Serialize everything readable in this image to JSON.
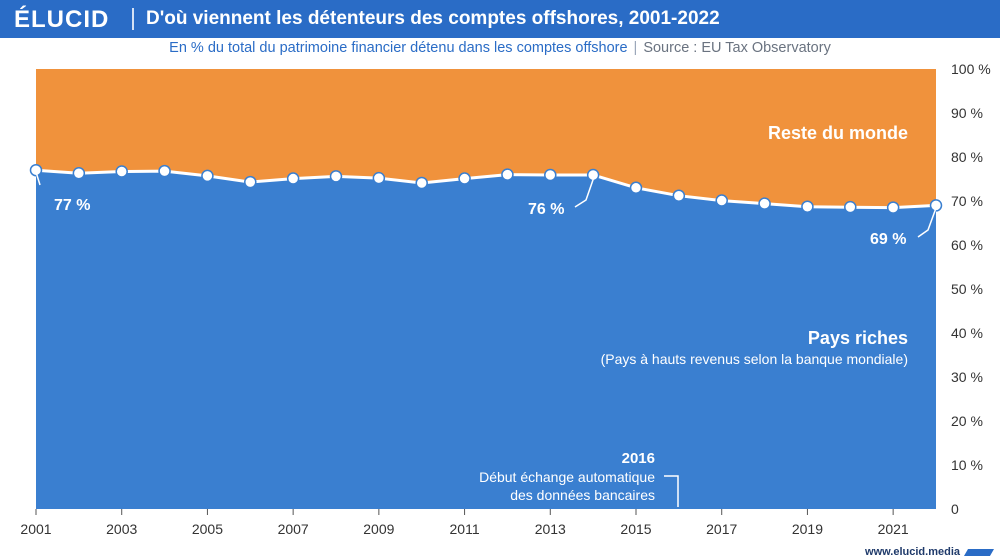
{
  "header": {
    "logo": "ÉLUCID",
    "title": "D'où viennent les détenteurs des comptes offshores, 2001-2022"
  },
  "subtitle": {
    "text": "En % du total du patrimoine financier détenu dans les comptes offshore",
    "separator": "|",
    "source": "Source : EU Tax Observatory"
  },
  "footer": {
    "site": "www.elucid.media"
  },
  "colors": {
    "header": "#2a6cc6",
    "blue_area": "#3a7fd0",
    "orange_area": "#f0923c",
    "line": "#ffffff"
  },
  "chart_data": {
    "type": "area",
    "x": [
      2001,
      2002,
      2003,
      2004,
      2005,
      2006,
      2007,
      2008,
      2009,
      2010,
      2011,
      2012,
      2013,
      2014,
      2015,
      2016,
      2017,
      2018,
      2019,
      2020,
      2021,
      2022
    ],
    "series": [
      {
        "name": "Pays riches",
        "values": [
          77,
          76.3,
          76.7,
          76.8,
          75.7,
          74.3,
          75.1,
          75.6,
          75.2,
          74.1,
          75.1,
          76,
          75.9,
          75.9,
          73,
          71.2,
          70.1,
          69.4,
          68.7,
          68.6,
          68.5,
          69
        ]
      },
      {
        "name": "Reste du monde",
        "values": [
          23,
          23.7,
          23.3,
          23.2,
          24.3,
          25.7,
          24.9,
          24.4,
          24.8,
          25.9,
          24.9,
          24,
          24.1,
          24.1,
          27,
          28.8,
          29.9,
          30.6,
          31.3,
          31.4,
          31.5,
          31
        ]
      }
    ],
    "xticks": [
      "2001",
      "2003",
      "2005",
      "2007",
      "2009",
      "2011",
      "2013",
      "2015",
      "2017",
      "2019",
      "2021"
    ],
    "yticks": [
      "0",
      "10 %",
      "20 %",
      "30 %",
      "40 %",
      "50 %",
      "60 %",
      "70 %",
      "80 %",
      "90 %",
      "100 %"
    ],
    "ylim": [
      0,
      100
    ],
    "labels": {
      "reste": "Reste du monde",
      "riches": "Pays riches",
      "riches_sub": "(Pays à hauts revenus selon la banque mondiale)",
      "p2001": "77 %",
      "p2014": "76 %",
      "p2022": "69 %"
    },
    "annotation": {
      "year": "2016",
      "line1": "Début échange automatique",
      "line2": "des données bancaires"
    }
  }
}
